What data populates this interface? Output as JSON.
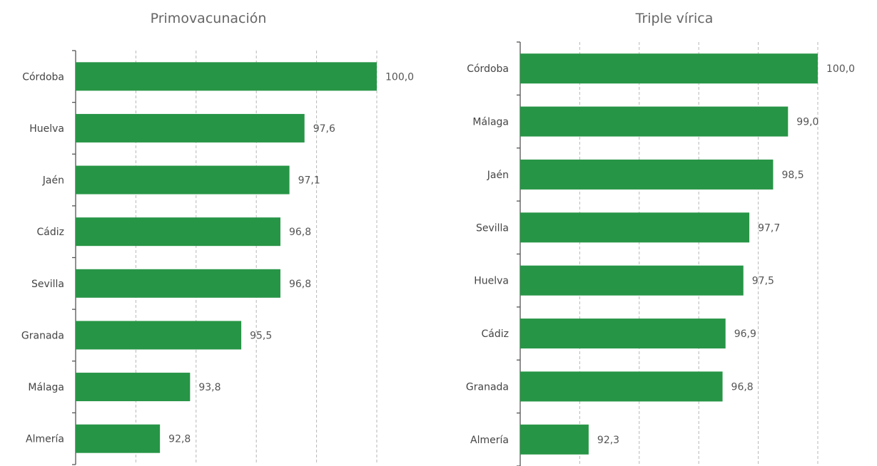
{
  "colors": {
    "bar": "#279546",
    "text": "#555555",
    "grid": "#b7b7b7"
  },
  "chart_data": [
    {
      "type": "bar",
      "orientation": "horizontal",
      "title": "Primovacunación",
      "categories": [
        "Córdoba",
        "Huelva",
        "Jaén",
        "Cádiz",
        "Sevilla",
        "Granada",
        "Málaga",
        "Almería"
      ],
      "values": [
        100.0,
        97.6,
        97.1,
        96.8,
        96.8,
        95.5,
        93.8,
        92.8
      ],
      "value_labels": [
        "100,0",
        "97,6",
        "97,1",
        "96,8",
        "96,8",
        "95,5",
        "93,8",
        "92,8"
      ],
      "xlim": [
        90,
        100
      ],
      "grid": true,
      "legend": "none"
    },
    {
      "type": "bar",
      "orientation": "horizontal",
      "title": "Triple vírica",
      "categories": [
        "Córdoba",
        "Málaga",
        "Jaén",
        "Sevilla",
        "Huelva",
        "Cádiz",
        "Granada",
        "Almería"
      ],
      "values": [
        100.0,
        99.0,
        98.5,
        97.7,
        97.5,
        96.9,
        96.8,
        92.3
      ],
      "value_labels": [
        "100,0",
        "99,0",
        "98,5",
        "97,7",
        "97,5",
        "96,9",
        "96,8",
        "92,3"
      ],
      "xlim": [
        90,
        100
      ],
      "grid": true,
      "legend": "none"
    }
  ]
}
